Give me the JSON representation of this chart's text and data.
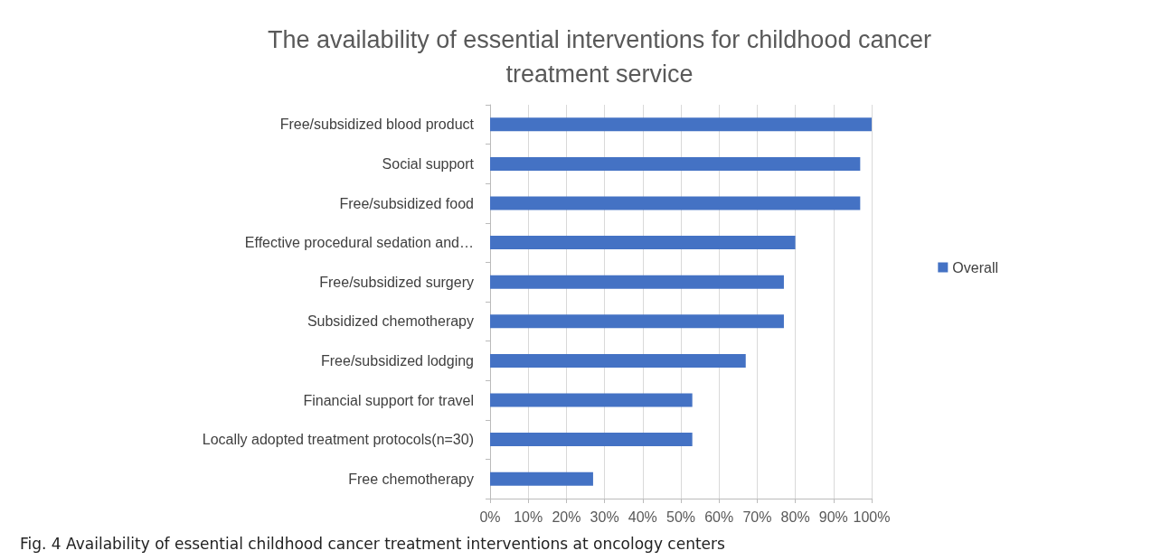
{
  "chart_data": {
    "type": "bar",
    "orientation": "horizontal",
    "title": "The availability of essential interventions for childhood cancer\ntreatment service",
    "categories": [
      "Free/subsidized blood product",
      "Social support",
      "Free/subsidized food",
      "Effective procedural sedation and…",
      "Free/subsidized surgery",
      "Subsidized chemotherapy",
      "Free/subsidized lodging",
      "Financial support for travel",
      "Locally adopted treatment protocols(n=30)",
      "Free chemotherapy"
    ],
    "series": [
      {
        "name": "Overall",
        "color": "#4472c4",
        "values": [
          100,
          97,
          97,
          80,
          77,
          77,
          67,
          53,
          53,
          27
        ]
      }
    ],
    "xlim": [
      0,
      100
    ],
    "xticks": [
      {
        "value": 0,
        "label": "0%"
      },
      {
        "value": 10,
        "label": "10%"
      },
      {
        "value": 20,
        "label": "20%"
      },
      {
        "value": 30,
        "label": "30%"
      },
      {
        "value": 40,
        "label": "40%"
      },
      {
        "value": 50,
        "label": "50%"
      },
      {
        "value": 60,
        "label": "60%"
      },
      {
        "value": 70,
        "label": "70%"
      },
      {
        "value": 80,
        "label": "80%"
      },
      {
        "value": 90,
        "label": "90%"
      },
      {
        "value": 100,
        "label": "100%"
      }
    ],
    "grid": "x",
    "legend": "right",
    "annotations": [
      "Fig. 4  Availability of essential childhood cancer treatment interventions at oncology centers"
    ]
  }
}
